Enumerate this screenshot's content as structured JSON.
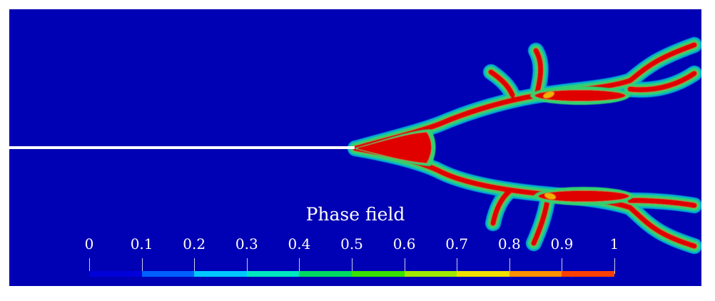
{
  "legend": {
    "title": "Phase field",
    "ticks": [
      "0",
      "0.1",
      "0.2",
      "0.3",
      "0.4",
      "0.5",
      "0.6",
      "0.7",
      "0.8",
      "0.9",
      "1"
    ],
    "colors": [
      "#0000d8",
      "#0060ff",
      "#00c8ff",
      "#00e8c0",
      "#00d860",
      "#38e000",
      "#a0e800",
      "#f0e000",
      "#ff9000",
      "#ff4000",
      "#e80000"
    ]
  },
  "field": {
    "background": "#0000b4",
    "crack_color": "#e00000",
    "halo_color": "#30d070",
    "notch_color": "#ffffff"
  }
}
